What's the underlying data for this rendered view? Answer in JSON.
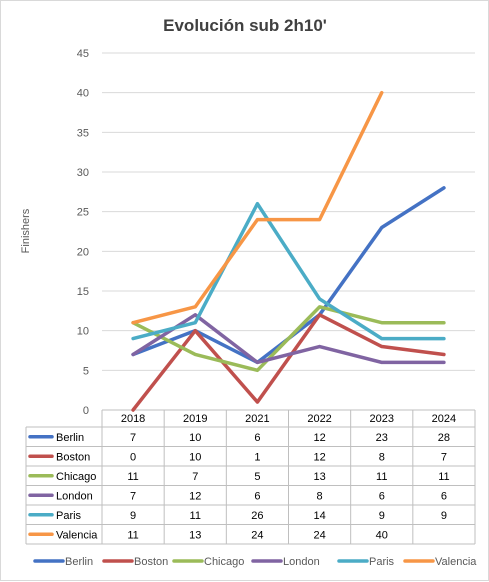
{
  "chart_data": {
    "type": "line",
    "title": "Evolución  sub 2h10'",
    "xlabel": "",
    "ylabel": "Finishers",
    "ylim": [
      0,
      45
    ],
    "yticks": [
      0,
      5,
      10,
      15,
      20,
      25,
      30,
      35,
      40,
      45
    ],
    "categories": [
      "2018",
      "2019",
      "2021",
      "2022",
      "2023",
      "2024"
    ],
    "grid": true,
    "legend": "bottom",
    "data_table": true,
    "series": [
      {
        "name": "Berlin",
        "color": "#4472c4",
        "values": [
          7,
          10,
          6,
          12,
          23,
          28
        ]
      },
      {
        "name": "Boston",
        "color": "#c0504d",
        "values": [
          0,
          10,
          1,
          12,
          8,
          7
        ]
      },
      {
        "name": "Chicago",
        "color": "#9bbb59",
        "values": [
          11,
          7,
          5,
          13,
          11,
          11
        ]
      },
      {
        "name": "London",
        "color": "#8064a2",
        "values": [
          7,
          12,
          6,
          8,
          6,
          6
        ]
      },
      {
        "name": "Paris",
        "color": "#4bacc6",
        "values": [
          9,
          11,
          26,
          14,
          9,
          9
        ]
      },
      {
        "name": "Valencia",
        "color": "#f79646",
        "values": [
          11,
          13,
          24,
          24,
          40,
          null
        ]
      }
    ]
  }
}
